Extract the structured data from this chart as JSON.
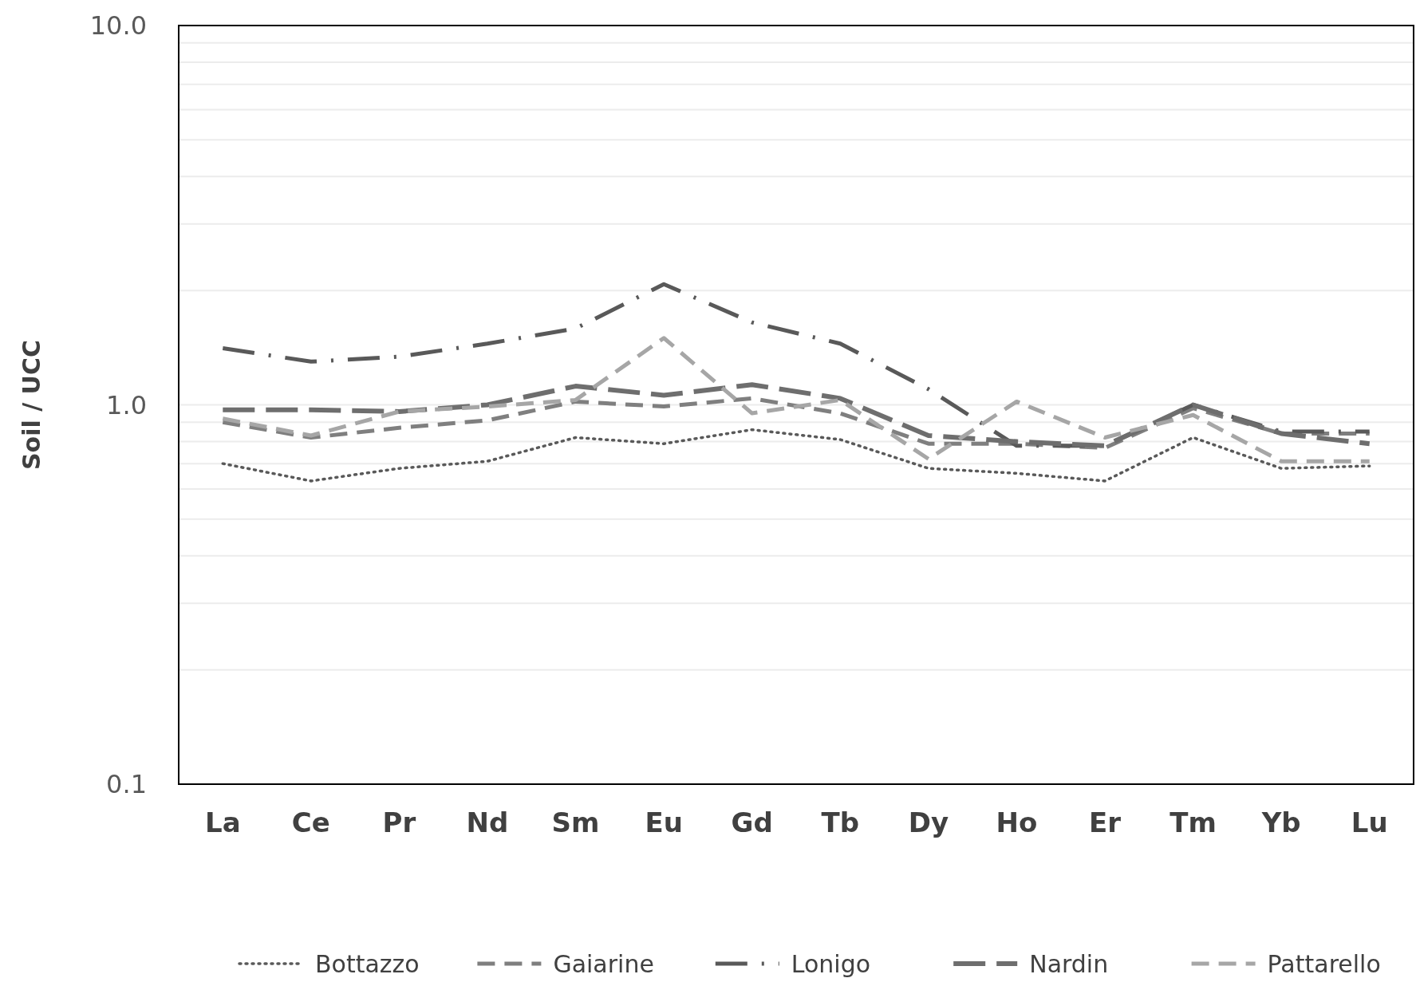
{
  "chart_data": {
    "type": "line",
    "ylabel": "Soil / UCC",
    "log": true,
    "grid": "y",
    "legend": "bottom",
    "categories": [
      "La",
      "Ce",
      "Pr",
      "Nd",
      "Sm",
      "Eu",
      "Gd",
      "Tb",
      "Dy",
      "Ho",
      "Er",
      "Tm",
      "Yb",
      "Lu"
    ],
    "ylim": [
      0.1,
      10
    ],
    "yticks": [
      {
        "value": 0.1,
        "label": "0.1"
      },
      {
        "value": 0.2,
        "label": null
      },
      {
        "value": 0.3,
        "label": null
      },
      {
        "value": 0.4,
        "label": null
      },
      {
        "value": 0.5,
        "label": null
      },
      {
        "value": 0.6,
        "label": null
      },
      {
        "value": 0.7,
        "label": null
      },
      {
        "value": 0.8,
        "label": null
      },
      {
        "value": 0.9,
        "label": null
      },
      {
        "value": 1,
        "label": "1.0"
      },
      {
        "value": 2,
        "label": null
      },
      {
        "value": 3,
        "label": null
      },
      {
        "value": 4,
        "label": null
      },
      {
        "value": 5,
        "label": null
      },
      {
        "value": 6,
        "label": null
      },
      {
        "value": 7,
        "label": null
      },
      {
        "value": 8,
        "label": null
      },
      {
        "value": 9,
        "label": null
      },
      {
        "value": 10,
        "label": "10.0"
      }
    ],
    "series": [
      {
        "name": "Bottazzo",
        "color": "#595959",
        "line_style": "dotted",
        "values": [
          0.7,
          0.63,
          0.68,
          0.71,
          0.82,
          0.79,
          0.86,
          0.81,
          0.68,
          0.66,
          0.63,
          0.82,
          0.68,
          0.69
        ]
      },
      {
        "name": "Gaiarine",
        "color": "#7f7f7f",
        "line_style": "dashed",
        "values": [
          0.9,
          0.82,
          0.87,
          0.91,
          1.02,
          0.99,
          1.04,
          0.95,
          0.79,
          0.79,
          0.77,
          0.98,
          0.84,
          0.84
        ]
      },
      {
        "name": "Lonigo",
        "color": "#595959",
        "line_style": "dashdot",
        "values": [
          1.41,
          1.3,
          1.34,
          1.45,
          1.59,
          2.08,
          1.65,
          1.45,
          1.1,
          0.78,
          0.78,
          1.0,
          0.85,
          0.85
        ]
      },
      {
        "name": "Nardin",
        "color": "#6e6e6e",
        "line_style": "longdash",
        "values": [
          0.97,
          0.97,
          0.96,
          1.0,
          1.12,
          1.06,
          1.13,
          1.04,
          0.83,
          0.8,
          0.78,
          1.0,
          0.84,
          0.79
        ]
      },
      {
        "name": "Pattarello",
        "color": "#a6a6a6",
        "line_style": "dashed",
        "values": [
          0.92,
          0.83,
          0.96,
          0.99,
          1.03,
          1.5,
          0.95,
          1.03,
          0.72,
          1.02,
          0.82,
          0.94,
          0.71,
          0.71
        ]
      }
    ]
  }
}
